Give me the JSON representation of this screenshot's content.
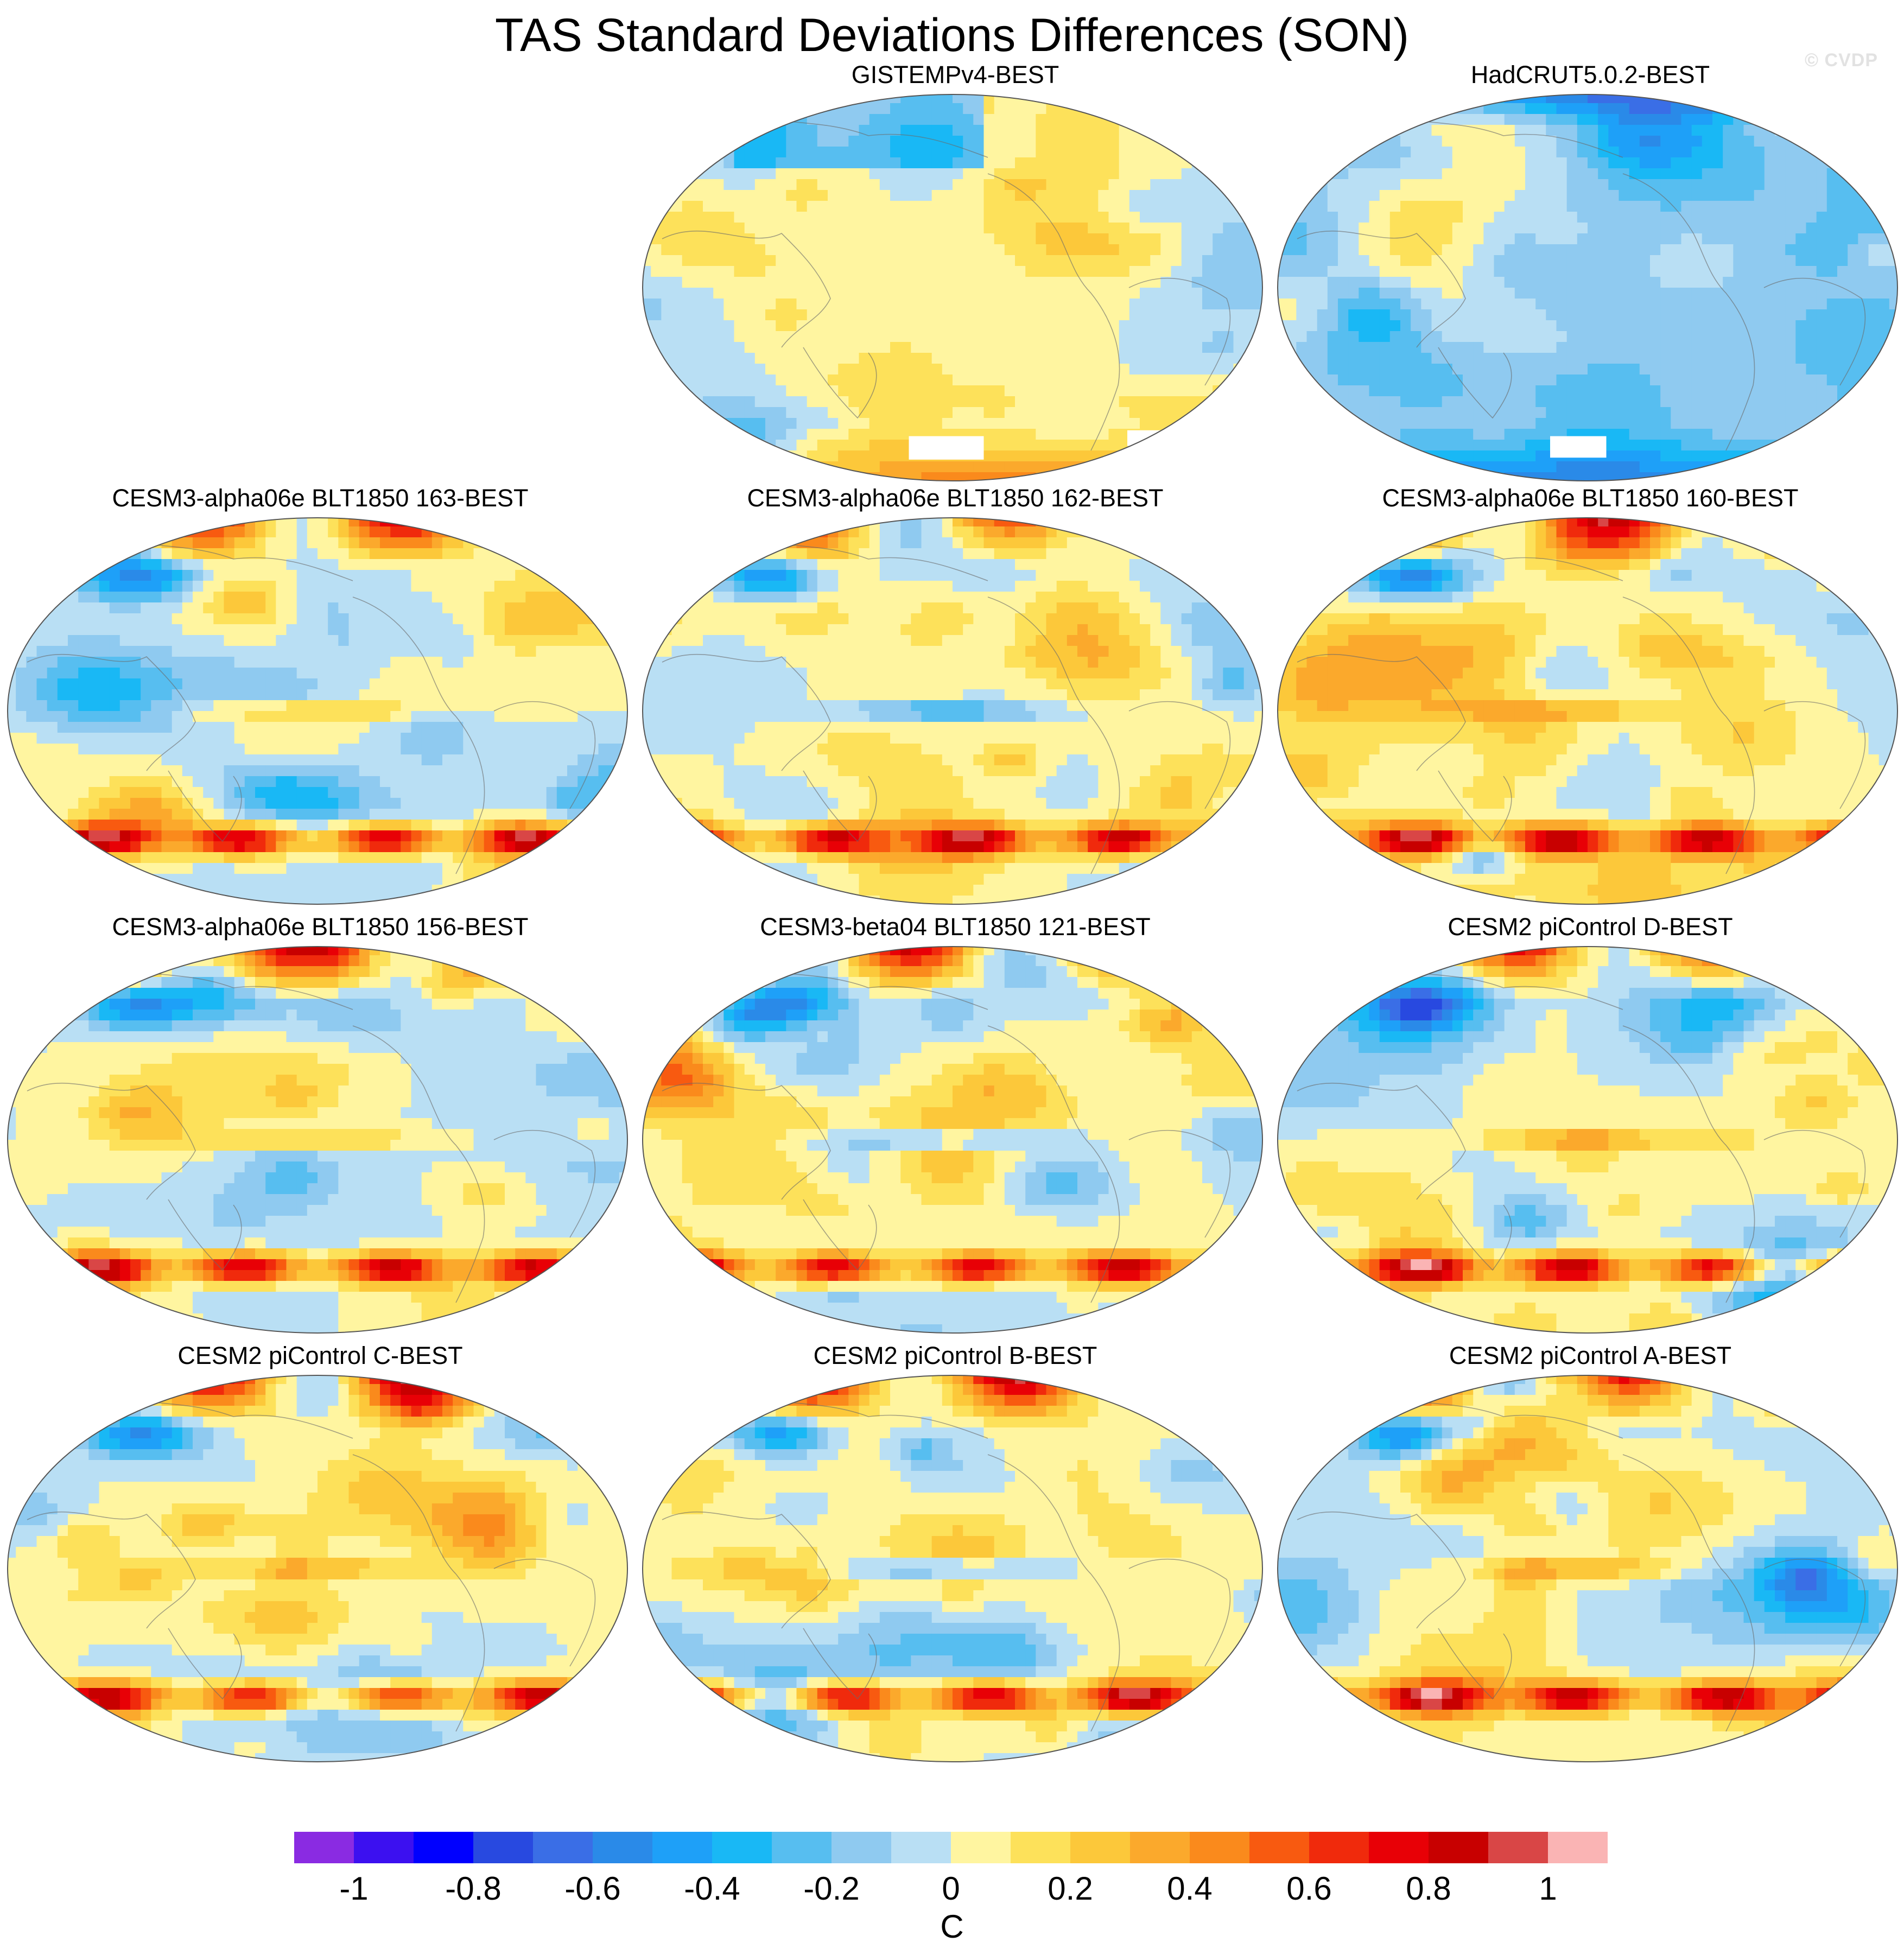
{
  "figure": {
    "title": "TAS Standard Deviations Differences (SON)",
    "watermark": "© CVDP"
  },
  "chart_data": {
    "type": "heatmap",
    "projection": "global map (Robinson), Pacific-centered",
    "variable": "surface air temperature standard deviation difference",
    "season": "SON",
    "units": "C",
    "panels": [
      {
        "label": "GISTEMPv4-BEST",
        "row": 1,
        "col": 2,
        "character": "mostly weak, mixed +/-0.2; strongest positive around Antarctica, missing data over parts of Antarctica"
      },
      {
        "label": "HadCRUT5.0.2-BEST",
        "row": 1,
        "col": 3,
        "character": "predominantly negative (~-0.2), strong negative near Arctic and Antarctic coasts, missing data over Antarctica"
      },
      {
        "label": "CESM3-alpha06e BLT1850 163-BEST",
        "row": 2,
        "col": 1,
        "character": "strong positive over Arctic sea ice edge and Southern Ocean (up to ~1), negative over Siberia"
      },
      {
        "label": "CESM3-alpha06e BLT1850 162-BEST",
        "row": 2,
        "col": 2,
        "character": "strong positive over Arctic and Southern Ocean, negative over northern Eurasia"
      },
      {
        "label": "CESM3-alpha06e BLT1850 160-BEST",
        "row": 2,
        "col": 3,
        "character": "strong positive over Arctic and Southern Ocean, mixed tropics"
      },
      {
        "label": "CESM3-alpha06e BLT1850 156-BEST",
        "row": 3,
        "col": 1,
        "character": "positive Arctic and Southern Ocean, negative North America/Siberia"
      },
      {
        "label": "CESM3-beta04 BLT1850 121-BEST",
        "row": 3,
        "col": 2,
        "character": "positive Arctic and Southern Ocean, positive central Asia"
      },
      {
        "label": "CESM2 piControl D-BEST",
        "row": 3,
        "col": 3,
        "character": "negative Siberia, positive Arctic margins, positive Southern Ocean"
      },
      {
        "label": "CESM2 piControl C-BEST",
        "row": 4,
        "col": 1,
        "character": "negative Siberia, positive equatorial Pacific band and Southern Ocean"
      },
      {
        "label": "CESM2 piControl B-BEST",
        "row": 4,
        "col": 2,
        "character": "negative Siberia and North America, positive Arctic and Southern Ocean"
      },
      {
        "label": "CESM2 piControl A-BEST",
        "row": 4,
        "col": 3,
        "character": "negative Siberia, positive Arctic margins and Southern Ocean"
      }
    ],
    "colorbar": {
      "label": "C",
      "tick_labels": [
        "-1",
        "-0.8",
        "-0.6",
        "-0.4",
        "-0.2",
        "0",
        "0.2",
        "0.4",
        "0.6",
        "0.8",
        "1"
      ],
      "tick_values": [
        -1,
        -0.8,
        -0.6,
        -0.4,
        -0.2,
        0,
        0.2,
        0.4,
        0.6,
        0.8,
        1
      ],
      "levels": [
        -1.1,
        -1.0,
        -0.9,
        -0.8,
        -0.7,
        -0.6,
        -0.5,
        -0.4,
        -0.3,
        -0.2,
        -0.1,
        0,
        0.1,
        0.2,
        0.3,
        0.4,
        0.5,
        0.6,
        0.7,
        0.8,
        0.9,
        1.0,
        1.1
      ],
      "colors": [
        "#8a2be2",
        "#3c10f0",
        "#0000ff",
        "#2849e0",
        "#3a6ee6",
        "#2a8ae8",
        "#1ea0f8",
        "#19b8f5",
        "#57bef0",
        "#8fcaf0",
        "#b9dff4",
        "#fff5a0",
        "#fde15a",
        "#fcc83a",
        "#fba92c",
        "#fa8a1c",
        "#f85a10",
        "#f02a0c",
        "#e80006",
        "#c80000",
        "#d94646",
        "#fab4b4"
      ]
    }
  }
}
